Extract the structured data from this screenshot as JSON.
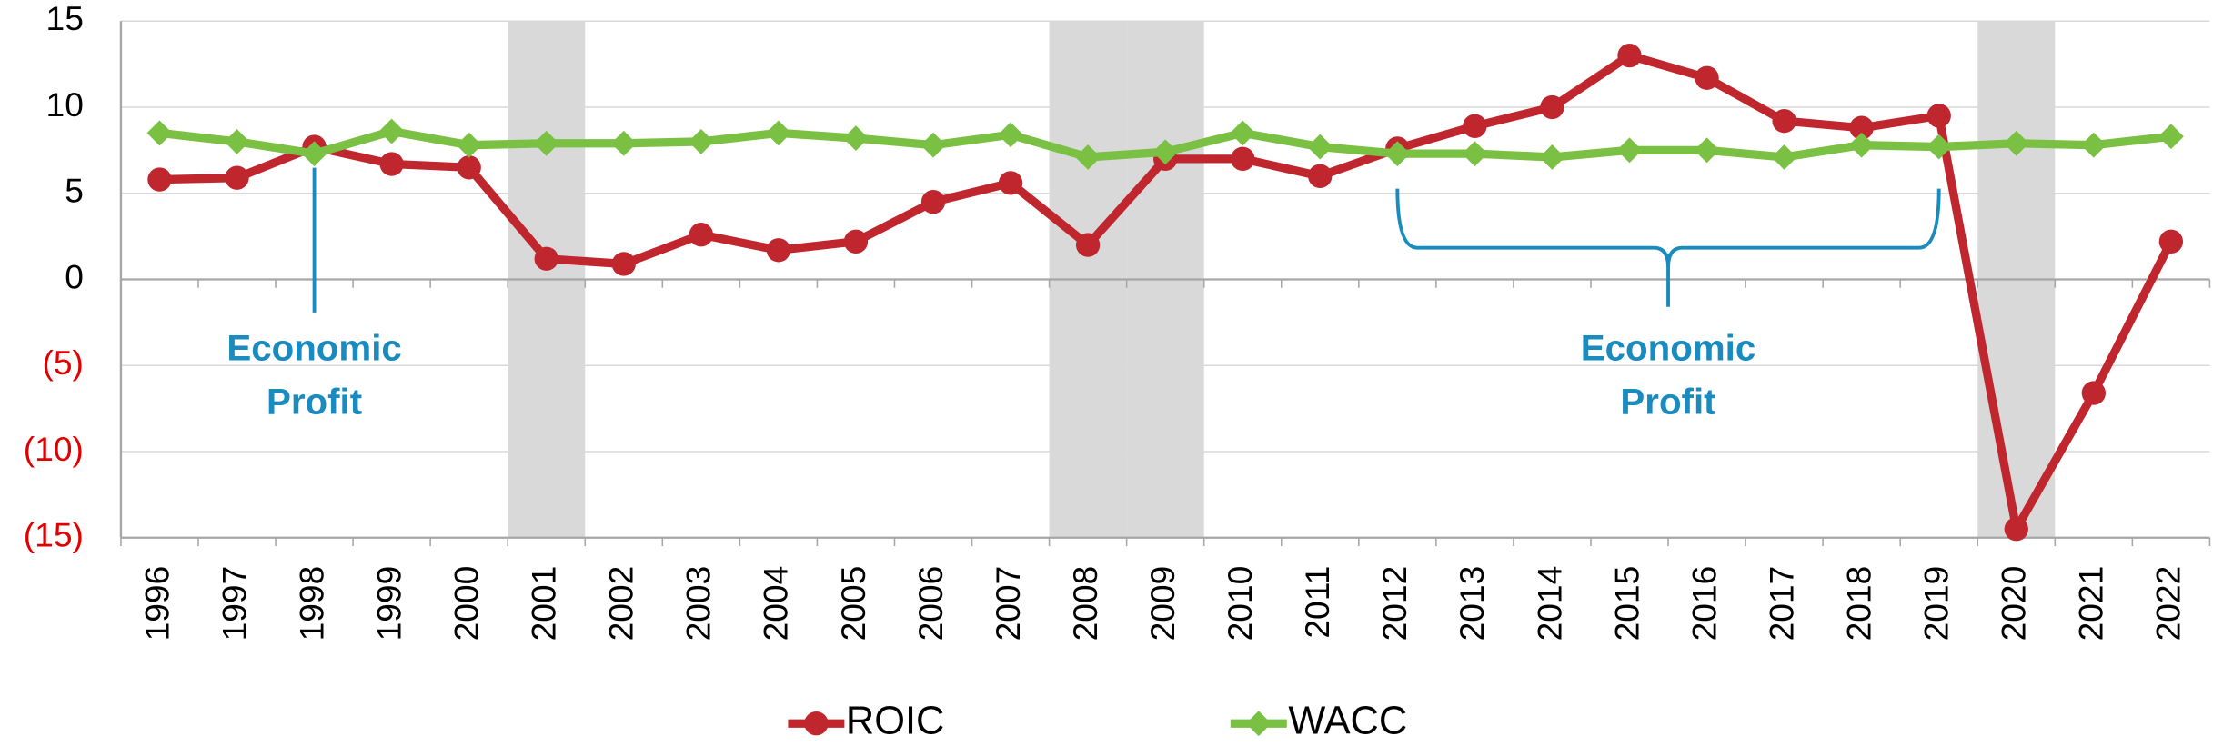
{
  "chart_data": {
    "type": "line",
    "categories": [
      "1996",
      "1997",
      "1998",
      "1999",
      "2000",
      "2001",
      "2002",
      "2003",
      "2004",
      "2005",
      "2006",
      "2007",
      "2008",
      "2009",
      "2010",
      "2011",
      "2012",
      "2013",
      "2014",
      "2015",
      "2016",
      "2017",
      "2018",
      "2019",
      "2020",
      "2021",
      "2022"
    ],
    "series": [
      {
        "name": "ROIC",
        "color": "#c0262d",
        "marker": "circle",
        "values": [
          5.8,
          5.9,
          7.7,
          6.7,
          6.5,
          1.2,
          0.9,
          2.6,
          1.7,
          2.2,
          4.5,
          5.6,
          2.0,
          7.0,
          7.0,
          6.0,
          7.6,
          8.9,
          10.0,
          13.0,
          11.7,
          9.2,
          8.8,
          9.5,
          -14.5,
          -6.6,
          2.2
        ]
      },
      {
        "name": "WACC",
        "color": "#7ac143",
        "marker": "diamond",
        "values": [
          8.5,
          8.0,
          7.3,
          8.6,
          7.8,
          7.9,
          7.9,
          8.0,
          8.5,
          8.2,
          7.8,
          8.4,
          7.1,
          7.4,
          8.5,
          7.7,
          7.3,
          7.3,
          7.1,
          7.5,
          7.5,
          7.1,
          7.8,
          7.7,
          7.9,
          7.8,
          8.3
        ]
      }
    ],
    "ylim": [
      -15,
      15
    ],
    "yticks": [
      15,
      10,
      5,
      0,
      {
        "value": -5,
        "label": "(5)"
      },
      {
        "value": -10,
        "label": "(10)"
      },
      {
        "value": -15,
        "label": "(15)"
      }
    ],
    "grid": true,
    "legend": "bottom",
    "shaded_categories": [
      "2001",
      "2008",
      "2009",
      "2020"
    ],
    "annotations": [
      "Economic Profit",
      "Economic Profit"
    ]
  }
}
